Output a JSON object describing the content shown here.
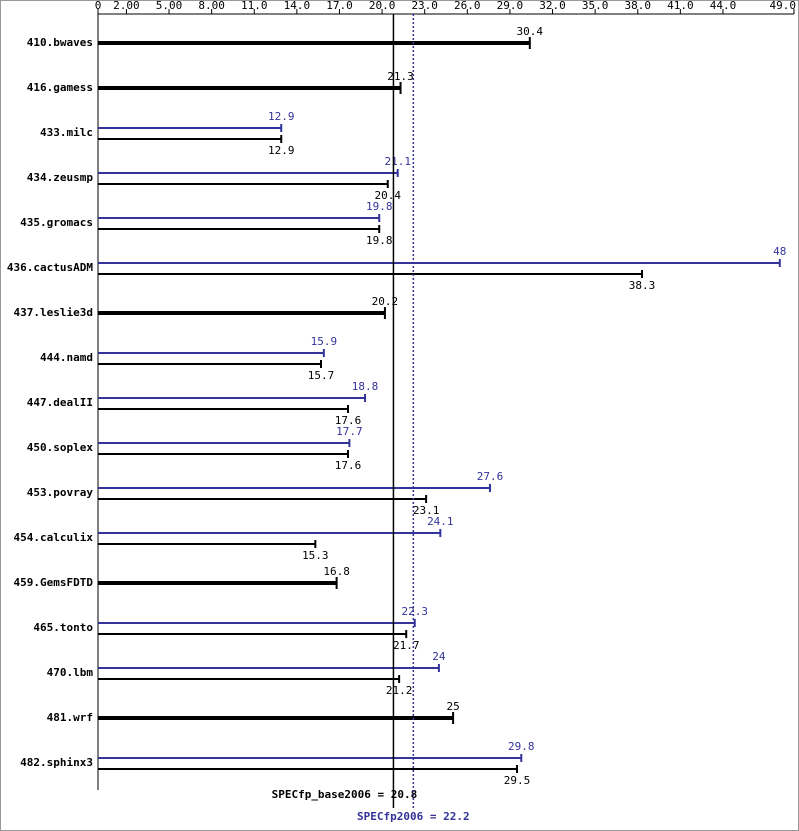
{
  "chart_data": {
    "type": "bar",
    "categories": [
      "410.bwaves",
      "416.gamess",
      "433.milc",
      "434.zeusmp",
      "435.gromacs",
      "436.cactusADM",
      "437.leslie3d",
      "444.namd",
      "447.dealII",
      "450.soplex",
      "453.povray",
      "454.calculix",
      "459.GemsFDTD",
      "465.tonto",
      "470.lbm",
      "481.wrf",
      "482.sphinx3"
    ],
    "series": [
      {
        "color": "#000000",
        "values": [
          30.4,
          21.3,
          12.9,
          20.4,
          19.8,
          38.3,
          20.2,
          15.7,
          17.6,
          17.6,
          23.1,
          15.3,
          16.8,
          21.7,
          21.2,
          25.0,
          29.5
        ]
      },
      {
        "color": "#333399",
        "values": [
          null,
          null,
          12.9,
          21.1,
          19.8,
          48.0,
          null,
          15.9,
          18.8,
          17.7,
          27.6,
          24.1,
          null,
          22.3,
          24.0,
          null,
          29.8
        ]
      }
    ],
    "xlim": [
      0,
      49
    ],
    "xticks": [
      0,
      {
        "value": 2,
        "label": "2.00"
      },
      {
        "value": 5,
        "label": "5.00"
      },
      {
        "value": 8,
        "label": "8.00"
      },
      {
        "value": 11,
        "label": "11.0"
      },
      {
        "value": 14,
        "label": "14.0"
      },
      {
        "value": 17,
        "label": "17.0"
      },
      {
        "value": 20,
        "label": "20.0"
      },
      {
        "value": 23,
        "label": "23.0"
      },
      {
        "value": 26,
        "label": "26.0"
      },
      {
        "value": 29,
        "label": "29.0"
      },
      {
        "value": 32,
        "label": "32.0"
      },
      {
        "value": 35,
        "label": "35.0"
      },
      {
        "value": 38,
        "label": "38.0"
      },
      {
        "value": 41,
        "label": "41.0"
      },
      {
        "value": 44,
        "label": "44.0"
      },
      {
        "value": 49,
        "label": "49.0"
      }
    ],
    "reference_lines": [
      {
        "value": 20.8,
        "label": "SPECfp_base2006 = 20.8",
        "color": "#000000",
        "style": "solid"
      },
      {
        "value": 22.2,
        "label": "SPECfp2006 = 22.2",
        "color": "#333399",
        "style": "dotted"
      }
    ]
  }
}
